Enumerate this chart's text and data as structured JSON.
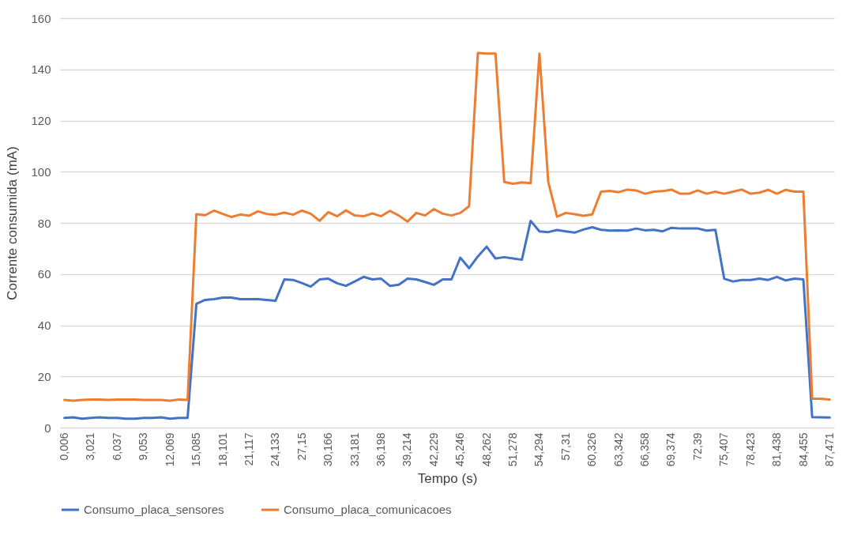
{
  "chart_data": {
    "type": "line",
    "xlabel": "Tempo (s)",
    "ylabel": "Corrente consumida (mA)",
    "categories": [
      "0,006",
      null,
      null,
      "3,021",
      null,
      null,
      "6,037",
      null,
      null,
      "9,053",
      null,
      null,
      "12,069",
      null,
      null,
      "15,085",
      null,
      null,
      "18,101",
      null,
      null,
      "21,117",
      null,
      null,
      "24,133",
      null,
      null,
      "27,15",
      null,
      null,
      "30,166",
      null,
      null,
      "33,181",
      null,
      null,
      "36,198",
      null,
      null,
      "39,214",
      null,
      null,
      "42,229",
      null,
      null,
      "45,246",
      null,
      null,
      "48,262",
      null,
      null,
      "51,278",
      null,
      null,
      "54,294",
      null,
      null,
      "57,31",
      null,
      null,
      "60,326",
      null,
      null,
      "63,342",
      null,
      null,
      "66,358",
      null,
      null,
      "69,374",
      null,
      null,
      "72,39",
      null,
      null,
      "75,407",
      null,
      null,
      "78,423",
      null,
      null,
      "81,438",
      null,
      null,
      "84,455",
      null,
      null,
      "87,471"
    ],
    "series": [
      {
        "name": "Consumo_placa_sensores",
        "color": "#4472c4",
        "values": [
          3.8,
          4,
          3.5,
          3.8,
          4,
          3.8,
          3.8,
          3.5,
          3.5,
          3.8,
          3.8,
          4,
          3.5,
          3.8,
          3.8,
          48.4,
          49.9,
          50.2,
          50.8,
          50.8,
          50.2,
          50.2,
          50.2,
          49.9,
          49.6,
          57.9,
          57.7,
          56.5,
          55.1,
          57.9,
          58.2,
          56.4,
          55.4,
          57.1,
          58.9,
          57.9,
          58.2,
          55.4,
          55.8,
          58.2,
          57.9,
          56.9,
          55.8,
          57.9,
          57.9,
          66.4,
          62.3,
          66.9,
          70.7,
          66.1,
          66.6,
          66.1,
          65.6,
          80.8,
          76.7,
          76.4,
          77.2,
          76.7,
          76.2,
          77.4,
          78.3,
          77.3,
          77,
          77.1,
          77,
          77.8,
          77.1,
          77.3,
          76.7,
          78.1,
          77.8,
          77.8,
          77.8,
          77,
          77.3,
          58.2,
          57.1,
          57.7,
          57.7,
          58.2,
          57.7,
          58.9,
          57.5,
          58.2,
          57.9,
          4.1,
          4,
          3.9
        ]
      },
      {
        "name": "Consumo_placa_comunicacoes",
        "color": "#ed7d31",
        "values": [
          10.8,
          10.5,
          10.8,
          11,
          11,
          10.8,
          11,
          11,
          11,
          10.8,
          10.8,
          10.8,
          10.5,
          11,
          10.8,
          83.4,
          83,
          84.8,
          83.5,
          82.3,
          83.3,
          82.8,
          84.5,
          83.5,
          83.2,
          84,
          83.2,
          84.8,
          83.6,
          80.8,
          84.2,
          82.6,
          84.9,
          82.9,
          82.6,
          83.7,
          82.6,
          84.7,
          82.9,
          80.5,
          83.9,
          82.9,
          85.4,
          83.6,
          82.9,
          83.9,
          86.5,
          146.4,
          146.2,
          146.2,
          96,
          95.3,
          95.8,
          95.5,
          146.2,
          96,
          82.4,
          83.9,
          83.4,
          82.8,
          83.3,
          92.2,
          92.5,
          92,
          93,
          92.7,
          91.4,
          92.2,
          92.4,
          93,
          91.4,
          91.4,
          92.7,
          91.4,
          92.2,
          91.4,
          92.2,
          93,
          91.4,
          91.8,
          92.9,
          91.4,
          92.9,
          92.2,
          92.2,
          11.3,
          11.3,
          11
        ]
      }
    ],
    "ylim": [
      0,
      160
    ],
    "yticks": [
      0,
      20,
      40,
      60,
      80,
      100,
      120,
      140,
      160
    ],
    "grid": "y",
    "legend": "bottom",
    "marker": "none",
    "line_style": "solid"
  }
}
